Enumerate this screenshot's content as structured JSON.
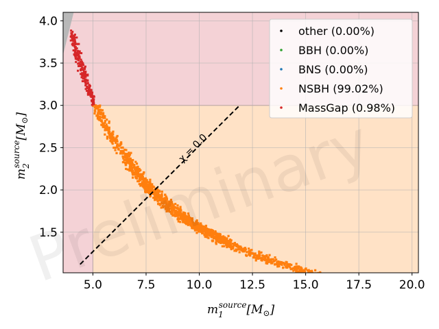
{
  "chart_data": {
    "type": "scatter",
    "title": "",
    "xlabel": {
      "base": "m",
      "sub": "1",
      "sup": "source",
      "unit": "[M",
      "unit_sub": "⊙",
      "unit_close": "]"
    },
    "ylabel": {
      "base": "m",
      "sub": "2",
      "sup": "source",
      "unit": "[M",
      "unit_sub": "⊙",
      "unit_close": "]"
    },
    "xlim": [
      3.6,
      20.3
    ],
    "ylim": [
      1.02,
      4.1
    ],
    "xticks": [
      "5.0",
      "7.5",
      "10.0",
      "12.5",
      "15.0",
      "17.5",
      "20.0"
    ],
    "yticks": [
      "1.5",
      "2.0",
      "2.5",
      "3.0",
      "3.5",
      "4.0"
    ],
    "grid": true,
    "legend_position": "top-right",
    "regions": [
      {
        "name": "NSBH",
        "color": "#ffe2c6",
        "x": [
          5.0,
          20.3
        ],
        "y": [
          1.02,
          3.0
        ]
      },
      {
        "name": "MassGap",
        "color": "#f4d2d6"
      }
    ],
    "series": [
      {
        "name": "other (0.00%)",
        "color": "#000000",
        "points": []
      },
      {
        "name": "BBH (0.00%)",
        "color": "#2ca02c",
        "points": []
      },
      {
        "name": "BNS (0.00%)",
        "color": "#1f77b4",
        "points": []
      },
      {
        "name": "NSBH (99.02%)",
        "color": "#ff7f0e",
        "relation": "m1 * m2 chirp-mass band, m1 from 5.0 to 19.3"
      },
      {
        "name": "MassGap (0.98%)",
        "color": "#d62728",
        "relation": "m1 from 4.5 to 5.0, m2 from 3.0 to 3.9"
      }
    ],
    "annotations": [
      {
        "text": "χ = 0.0",
        "line": {
          "x": [
            4.4,
            11.9
          ],
          "y": [
            1.12,
            3.0
          ]
        },
        "style": "dashed"
      }
    ],
    "watermark": "Preliminary"
  }
}
